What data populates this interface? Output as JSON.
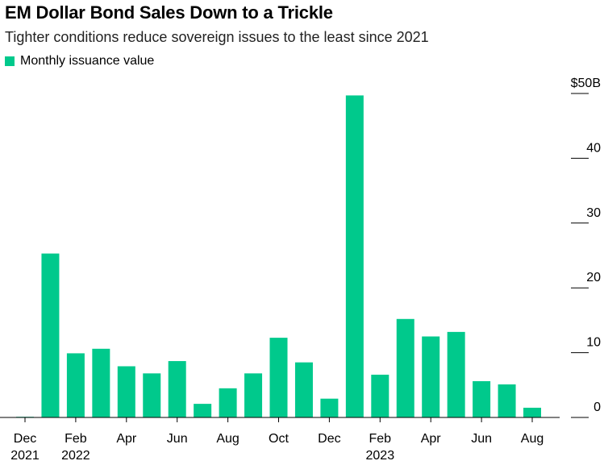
{
  "header": {
    "title": "EM Dollar Bond Sales Down to a Trickle",
    "subtitle": "Tighter conditions reduce sovereign issues to the least since 2021"
  },
  "legend": {
    "label": "Monthly issuance value",
    "color": "#00c98c"
  },
  "chart_data": {
    "type": "bar",
    "title": "EM Dollar Bond Sales Down to a Trickle",
    "subtitle": "Tighter conditions reduce sovereign issues to the least since 2021",
    "categories": [
      "Dec 2021",
      "Jan 2022",
      "Feb 2022",
      "Mar 2022",
      "Apr 2022",
      "May 2022",
      "Jun 2022",
      "Jul 2022",
      "Aug 2022",
      "Sep 2022",
      "Oct 2022",
      "Nov 2022",
      "Dec 2022",
      "Jan 2023",
      "Feb 2023",
      "Mar 2023",
      "Apr 2023",
      "May 2023",
      "Jun 2023",
      "Jul 2023",
      "Aug 2023"
    ],
    "series": [
      {
        "name": "Monthly issuance value",
        "color": "#00c98c",
        "values": [
          0.1,
          25.3,
          9.9,
          10.6,
          7.9,
          6.8,
          8.7,
          2.1,
          4.5,
          6.8,
          12.3,
          8.5,
          2.9,
          49.7,
          6.6,
          15.2,
          12.5,
          13.2,
          5.6,
          5.1,
          1.5
        ]
      }
    ],
    "x_tick_labels": [
      {
        "index": 0,
        "month": "Dec",
        "year": "2021"
      },
      {
        "index": 2,
        "month": "Feb",
        "year": "2022"
      },
      {
        "index": 4,
        "month": "Apr",
        "year": ""
      },
      {
        "index": 6,
        "month": "Jun",
        "year": ""
      },
      {
        "index": 8,
        "month": "Aug",
        "year": ""
      },
      {
        "index": 10,
        "month": "Oct",
        "year": ""
      },
      {
        "index": 12,
        "month": "Dec",
        "year": ""
      },
      {
        "index": 14,
        "month": "Feb",
        "year": "2023"
      },
      {
        "index": 16,
        "month": "Apr",
        "year": ""
      },
      {
        "index": 18,
        "month": "Jun",
        "year": ""
      },
      {
        "index": 20,
        "month": "Aug",
        "year": ""
      }
    ],
    "y_ticks": [
      0,
      10,
      20,
      30,
      40,
      50
    ],
    "y_tick_labels": [
      "0",
      "10",
      "20",
      "30",
      "40",
      "$50B"
    ],
    "ylim": [
      0,
      50
    ],
    "y_axis_side": "right",
    "grid": false,
    "legend_position": "top-left"
  }
}
